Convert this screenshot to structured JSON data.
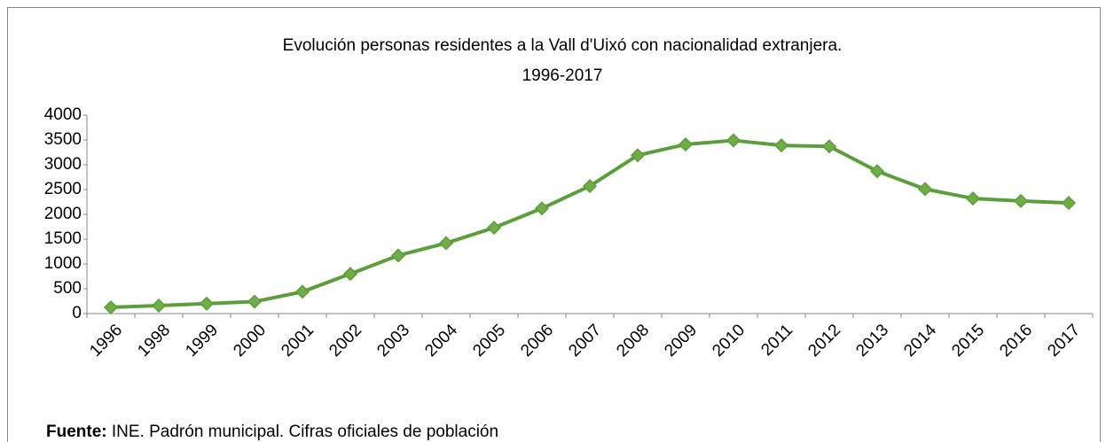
{
  "chart_data": {
    "type": "line",
    "title": [
      "Evolución personas residentes a la Vall d'Uixó con nacionalidad extranjera.",
      "1996-2017"
    ],
    "categories": [
      "1996",
      "1998",
      "1999",
      "2000",
      "2001",
      "2002",
      "2003",
      "2004",
      "2005",
      "2006",
      "2007",
      "2008",
      "2009",
      "2010",
      "2011",
      "2012",
      "2013",
      "2014",
      "2015",
      "2016",
      "2017"
    ],
    "series": [
      {
        "color": "#5c9e3c",
        "values": [
          125,
          160,
          200,
          240,
          440,
          800,
          1170,
          1420,
          1730,
          2120,
          2570,
          3190,
          3410,
          3490,
          3390,
          3370,
          2870,
          2510,
          2320,
          2270,
          2230
        ]
      }
    ],
    "ylim": [
      0,
      4000
    ],
    "yticks": [
      0,
      500,
      1000,
      1500,
      2000,
      2500,
      3000,
      3500,
      4000
    ],
    "grid": false,
    "source": {
      "label": "Fuente:",
      "text": "INE. Padrón municipal. Cifras oficiales de población"
    }
  }
}
